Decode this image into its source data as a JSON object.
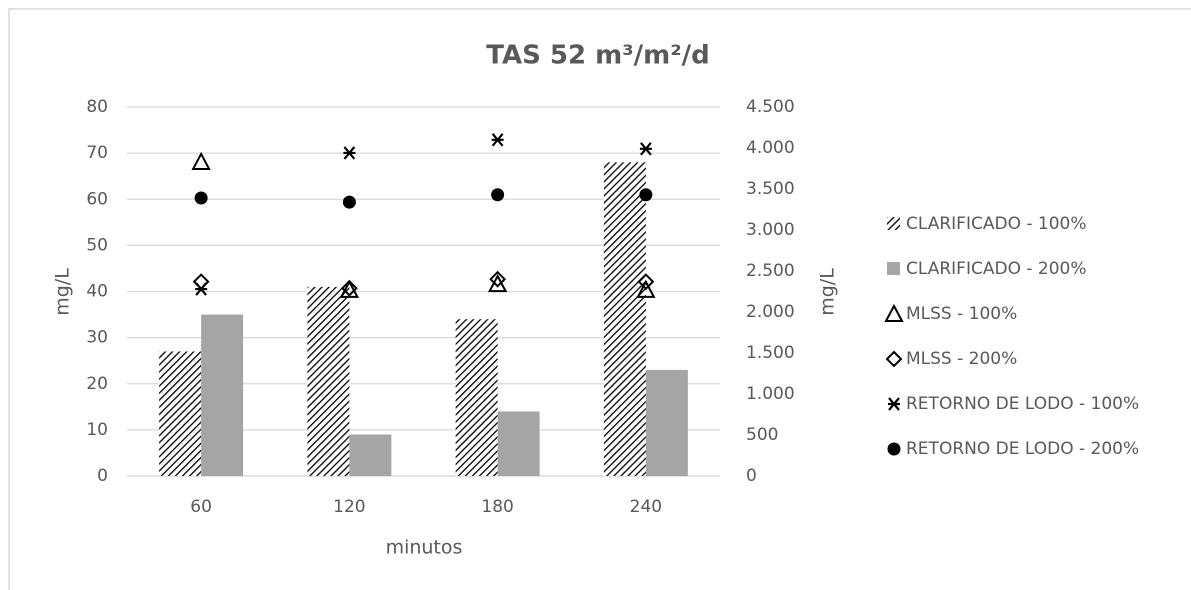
{
  "chart_data": {
    "type": "combo",
    "title": "TAS 52 m³/m²/d",
    "x_label": "minutos",
    "y_label": "mg/L",
    "y2_label": "mg/L",
    "categories": [
      "60",
      "120",
      "180",
      "240"
    ],
    "ylim": [
      0,
      80
    ],
    "yticks": [
      0,
      10,
      20,
      30,
      40,
      50,
      60,
      70,
      80
    ],
    "y2lim": [
      0,
      4500
    ],
    "y2ticks": [
      0,
      500,
      {
        "value": 1000,
        "label": "1.000"
      },
      {
        "value": 1500,
        "label": "1.500"
      },
      {
        "value": 2000,
        "label": "2.000"
      },
      {
        "value": 2500,
        "label": "2.500"
      },
      {
        "value": 3000,
        "label": "3.000"
      },
      {
        "value": 3500,
        "label": "3.500"
      },
      {
        "value": 4000,
        "label": "4.000"
      },
      {
        "value": 4500,
        "label": "4.500"
      }
    ],
    "grid": true,
    "legend": "right",
    "series": [
      {
        "name": "CLARIFICADO - 100%",
        "type": "bar",
        "pattern": "diagonal",
        "color": "#000000",
        "values": [
          27,
          41,
          34,
          68
        ]
      },
      {
        "name": "CLARIFICADO - 200%",
        "type": "bar",
        "color": "#a5a5a5",
        "values": [
          35,
          9,
          14,
          23
        ]
      },
      {
        "name": "MLSS - 100%",
        "type": "scatter",
        "marker": "triangle",
        "axis": "y2",
        "color": "#000000",
        "values": [
          3830,
          2270,
          2340,
          2270
        ]
      },
      {
        "name": "MLSS - 200%",
        "type": "scatter",
        "marker": "diamond",
        "axis": "y2",
        "color": "#000000",
        "values": [
          2370,
          2290,
          2400,
          2370
        ]
      },
      {
        "name": "RETORNO DE LODO - 100%",
        "type": "scatter",
        "marker": "asterisk",
        "axis": "y2",
        "color": "#000000",
        "values": [
          2280,
          3940,
          4100,
          3990
        ]
      },
      {
        "name": "RETORNO DE LODO - 200%",
        "type": "scatter",
        "marker": "circle",
        "axis": "y2",
        "color": "#000000",
        "values": [
          3390,
          3340,
          3430,
          3430
        ]
      }
    ]
  }
}
